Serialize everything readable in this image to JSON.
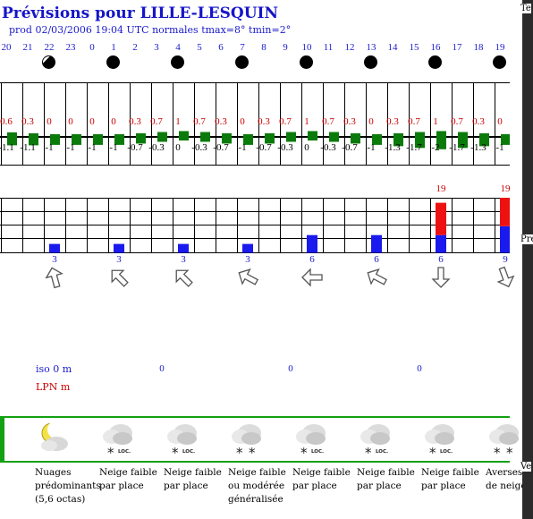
{
  "page": {
    "title": "Prévisions pour LILLE-LESQUIN",
    "prod": "prod 02/03/2006 19:04 UTC normales tmax=8° tmin=2°"
  },
  "hours": [
    "20",
    "21",
    "22",
    "23",
    "0",
    "1",
    "2",
    "3",
    "4",
    "5",
    "6",
    "7",
    "8",
    "9",
    "10",
    "11",
    "12",
    "13",
    "14",
    "15",
    "16",
    "17",
    "18",
    "19"
  ],
  "moons": [
    {
      "label": "22",
      "type": "partial"
    },
    {
      "label": "1",
      "type": "full"
    },
    {
      "label": "4",
      "type": "full"
    },
    {
      "label": "7",
      "type": "full"
    },
    {
      "label": "10",
      "type": "full"
    },
    {
      "label": "13",
      "type": "full"
    },
    {
      "label": "16",
      "type": "full"
    },
    {
      "label": "19",
      "type": "full"
    }
  ],
  "chart_data": [
    {
      "type": "bar",
      "title": "",
      "categories": [
        "20",
        "21",
        "22",
        "23",
        "0",
        "1",
        "2",
        "3",
        "4",
        "5",
        "6",
        "7",
        "8",
        "9",
        "10",
        "11",
        "12",
        "13",
        "14",
        "15",
        "16",
        "17",
        "18",
        "19"
      ],
      "series": [
        {
          "name": "",
          "values": [
            0.6,
            0.3,
            0,
            0,
            0,
            0,
            0.3,
            0.7,
            1,
            0.7,
            0.3,
            0,
            0.3,
            0.7,
            1,
            0.7,
            0.3,
            0,
            0.3,
            0.7,
            1,
            0.7,
            0.3,
            0
          ]
        },
        {
          "name": "",
          "values": [
            -1.1,
            -1.1,
            -1,
            -1,
            -1,
            -1,
            -0.7,
            -0.3,
            0,
            -0.3,
            -0.7,
            -1,
            -0.7,
            -0.3,
            0,
            -0.3,
            -0.7,
            -1,
            -1.3,
            -1.7,
            -2,
            -1.7,
            -1.3,
            -1
          ]
        }
      ],
      "labels_top": [
        "0.6",
        "0.3",
        "0",
        "0",
        "0",
        "0",
        "0.3",
        "0.7",
        "1",
        "0.7",
        "0.3",
        "0",
        "0.3",
        "0.7",
        "1",
        "0.7",
        "0.3",
        "0",
        "0.3",
        "0.7",
        "1",
        "0.7",
        "0.3",
        "0"
      ],
      "labels_bottom": [
        "-1.1",
        "-1.1",
        "-1",
        "-1",
        "-1",
        "-1",
        "-0.7",
        "-0.3",
        "0",
        "-0.3",
        "-0.7",
        "-1",
        "-0.7",
        "-0.3",
        "0",
        "-0.3",
        "-0.7",
        "-1",
        "-1.3",
        "-1.7",
        "-2",
        "-1.7",
        "-1.3",
        "-1"
      ]
    },
    {
      "type": "bar",
      "title": "",
      "categories": [
        "22",
        "1",
        "4",
        "7",
        "10",
        "13",
        "16",
        "19"
      ],
      "series": [
        {
          "name": "",
          "values": [
            3,
            3,
            3,
            3,
            6,
            6,
            6,
            9
          ]
        },
        {
          "name": "",
          "values": [
            0,
            0,
            0,
            0,
            0,
            0,
            19,
            19
          ]
        }
      ],
      "labels_top": [
        "",
        "",
        "",
        "",
        "",
        "",
        "19",
        "19"
      ]
    }
  ],
  "wind": [
    {
      "speed": "3",
      "dir": "nne"
    },
    {
      "speed": "3",
      "dir": "nw"
    },
    {
      "speed": "3",
      "dir": "nw"
    },
    {
      "speed": "3",
      "dir": "wnw"
    },
    {
      "speed": "6",
      "dir": "w"
    },
    {
      "speed": "6",
      "dir": "wnw"
    },
    {
      "speed": "6",
      "dir": "s"
    },
    {
      "speed": "9",
      "dir": "sse"
    }
  ],
  "iso": {
    "label": "iso 0 m",
    "values": [
      "0",
      "0",
      "0"
    ]
  },
  "lpn": {
    "label": "LPN m"
  },
  "weather": [
    {
      "icon": "moon-cloud-icon",
      "label": "Nuages\nprédominants\n(5,6 octas)"
    },
    {
      "icon": "snow-cloud-icon",
      "loc": "LOC.",
      "label": "Neige faible\npar place"
    },
    {
      "icon": "snow-cloud-icon",
      "loc": "LOC.",
      "label": "Neige faible\npar place"
    },
    {
      "icon": "snow-cloud-icon",
      "loc": "",
      "label": "Neige faible\nou modérée\ngénéralisée"
    },
    {
      "icon": "snow-cloud-icon",
      "loc": "LOC.",
      "label": "Neige faible\npar place"
    },
    {
      "icon": "snow-cloud-icon",
      "loc": "LOC.",
      "label": "Neige faible\npar place"
    },
    {
      "icon": "snow-cloud-icon",
      "loc": "LOC.",
      "label": "Neige faible\npar place"
    },
    {
      "icon": "snow-cloud-icon",
      "loc": "",
      "label": "Averses\nde neige"
    }
  ],
  "right": {
    "t1": "Te",
    "t2": "Pre",
    "t3": "Ve"
  },
  "colors": {
    "blue": "#1a1acc",
    "red": "#cc0000",
    "green": "#0a7a0a",
    "frame": "#13a013"
  }
}
